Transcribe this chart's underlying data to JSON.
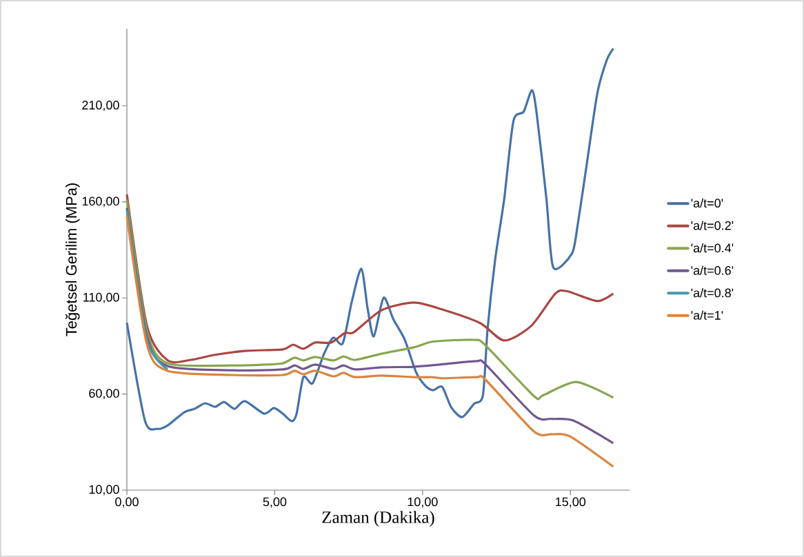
{
  "chart_data": {
    "type": "line",
    "xlabel": "Zaman (Dakika)",
    "ylabel": "Teğetsel Gerilim  (MPa)",
    "xlim": [
      0,
      17
    ],
    "ylim": [
      10,
      250
    ],
    "xticks": [
      {
        "value": 0,
        "label": "0,00"
      },
      {
        "value": 5,
        "label": "5,00"
      },
      {
        "value": 10,
        "label": "10,00"
      },
      {
        "value": 15,
        "label": "15,00"
      }
    ],
    "yticks": [
      {
        "value": 10,
        "label": "10,00"
      },
      {
        "value": 60,
        "label": "60,00"
      },
      {
        "value": 110,
        "label": "110,00"
      },
      {
        "value": 160,
        "label": "160,00"
      },
      {
        "value": 210,
        "label": "210,00"
      }
    ],
    "grid": false,
    "legend": "right",
    "marker": "none",
    "line_style": "solid",
    "series": [
      {
        "name": "'a/t=0'",
        "color": "#4572a7",
        "x": [
          0,
          0.61,
          1.03,
          1.38,
          1.94,
          2.29,
          2.64,
          2.99,
          3.29,
          3.64,
          3.99,
          4.64,
          4.97,
          5.27,
          5.58,
          5.74,
          5.97,
          6.28,
          6.67,
          6.98,
          7.3,
          7.61,
          7.93,
          8.14,
          8.35,
          8.68,
          9.01,
          9.4,
          9.78,
          10.1,
          10.36,
          10.66,
          10.97,
          11.34,
          11.74,
          12.04,
          12.2,
          12.46,
          12.76,
          13.07,
          13.42,
          13.7,
          13.86,
          14.19,
          14.42,
          15.05,
          15.24,
          15.54,
          15.91,
          16.22,
          16.45
        ],
        "values": [
          97.2,
          46.2,
          41.9,
          43.7,
          50.5,
          52.3,
          55.2,
          53.4,
          55.9,
          52.3,
          56.3,
          49.8,
          52.7,
          49.8,
          45.9,
          49.8,
          68.8,
          65.6,
          81,
          89.3,
          86.4,
          108.3,
          125.2,
          104.7,
          90,
          110.1,
          99,
          88.2,
          71.4,
          64.2,
          62,
          63.8,
          53.1,
          48,
          54.9,
          59.3,
          94,
          130.6,
          161.4,
          201.9,
          207,
          218.1,
          205.9,
          161.4,
          125.9,
          133.1,
          147.4,
          178.3,
          216.5,
          233.4,
          239.8
        ]
      },
      {
        "name": "'a/t=0.2'",
        "color": "#aa4643",
        "x": [
          0,
          0.68,
          1.38,
          2.17,
          2.94,
          4.04,
          5.27,
          5.62,
          5.97,
          6.37,
          6.91,
          7.37,
          7.68,
          8.61,
          9.71,
          10.71,
          11.95,
          12.76,
          13.67,
          14.49,
          14.89,
          15.91,
          16.45
        ],
        "values": [
          163.9,
          95.4,
          77.5,
          77.8,
          80.3,
          82.5,
          83.2,
          85.7,
          83.6,
          86.8,
          86.8,
          91.8,
          92.2,
          103.6,
          107.6,
          103.8,
          96.9,
          87.9,
          95.4,
          112.3,
          113.5,
          108.4,
          112.3
        ]
      },
      {
        "name": "'a/t=0.4'",
        "color": "#89a54e",
        "x": [
          0,
          0.68,
          1.38,
          3.57,
          4.64,
          5.27,
          5.67,
          5.97,
          6.37,
          6.98,
          7.33,
          7.72,
          8.61,
          9.71,
          10.36,
          11.74,
          12.13,
          13.77,
          14.07,
          15.19,
          16.45
        ],
        "values": [
          161,
          93,
          76,
          74.9,
          75.3,
          76,
          78.9,
          77.5,
          79.3,
          77.5,
          79.6,
          77.8,
          81,
          84.3,
          87.3,
          88.2,
          85.3,
          58.9,
          59.3,
          66.3,
          58.1
        ]
      },
      {
        "name": "'a/t=0.6'",
        "color": "#71588f",
        "x": [
          0,
          0.68,
          1.38,
          3.57,
          5.27,
          5.67,
          5.97,
          6.37,
          6.98,
          7.33,
          7.72,
          8.61,
          9.71,
          10.62,
          11.83,
          12.13,
          13.77,
          14.37,
          15.1,
          16.45
        ],
        "values": [
          156.8,
          90,
          74.6,
          72.4,
          72.8,
          74.9,
          73.1,
          75.3,
          73.1,
          74.9,
          72.8,
          73.9,
          74.2,
          75.4,
          77.1,
          75.4,
          48.8,
          47.1,
          46.2,
          34.4
        ]
      },
      {
        "name": "'a/t=0.8'",
        "color": "#4198af",
        "x": [
          0,
          0.68,
          1.38
        ],
        "values": [
          155.7,
          88,
          73
        ]
      },
      {
        "name": "'a/t=1'",
        "color": "#db843d",
        "x": [
          0,
          0.68,
          1.38,
          3.57,
          5.27,
          5.67,
          5.97,
          6.37,
          6.98,
          7.33,
          7.72,
          8.61,
          9.71,
          10.31,
          10.73,
          11.83,
          12.13,
          13.77,
          14.37,
          14.98,
          16.45
        ],
        "values": [
          152.8,
          85.7,
          72.1,
          69.9,
          69.9,
          72.1,
          70.3,
          72.1,
          69.2,
          71,
          68.8,
          69.6,
          68.8,
          68.8,
          68.2,
          68.8,
          67.4,
          40.5,
          39.1,
          38,
          22.2
        ]
      }
    ]
  }
}
